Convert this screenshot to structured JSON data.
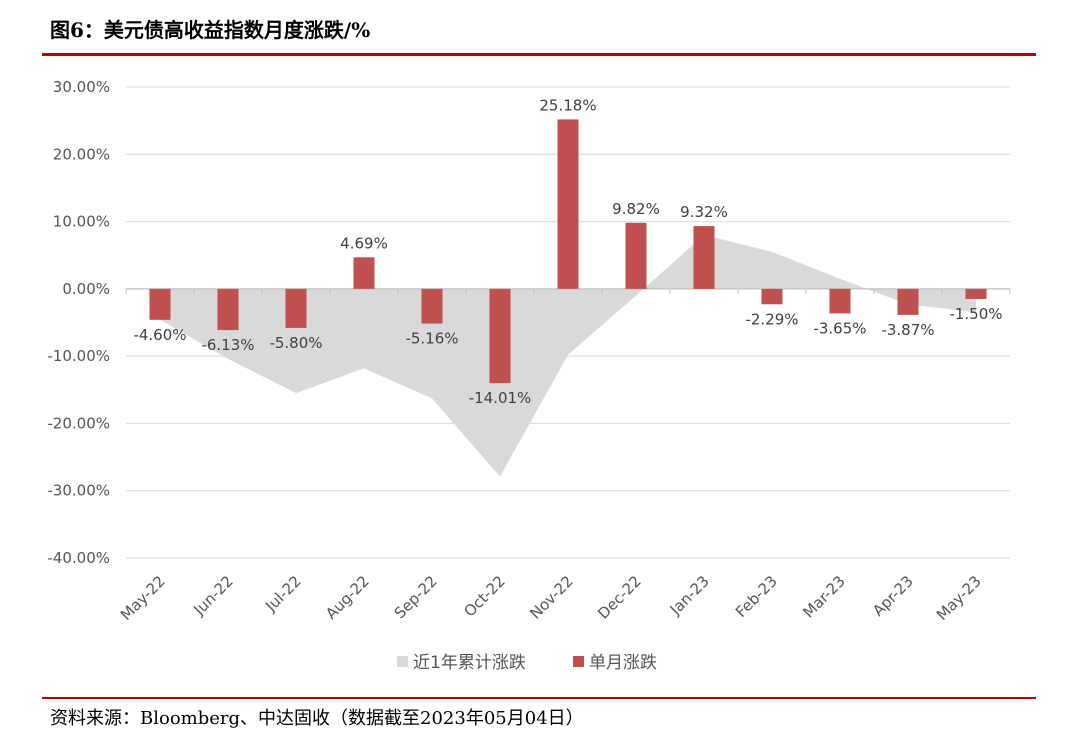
{
  "title": "图6：美元债高收益指数月度涨跌/%",
  "source": "资料来源：Bloomberg、中达固收（数据截至2023年05月04日）",
  "colors": {
    "bar": "#c0504d",
    "area": "#d9d9d9",
    "rule": "#c00000",
    "grid": "#d9d9d9"
  },
  "chart_data": {
    "type": "bar",
    "title": "图6：美元债高收益指数月度涨跌/%",
    "categories": [
      "May-22",
      "Jun-22",
      "Jul-22",
      "Aug-22",
      "Sep-22",
      "Oct-22",
      "Nov-22",
      "Dec-22",
      "Jan-23",
      "Feb-23",
      "Mar-23",
      "Apr-23",
      "May-23"
    ],
    "ylim": [
      -40,
      30
    ],
    "yticks": [
      30,
      20,
      10,
      0,
      -10,
      -20,
      -30,
      -40
    ],
    "ytick_labels": [
      "30.00%",
      "20.00%",
      "10.00%",
      "0.00%",
      "-10.00%",
      "-20.00%",
      "-30.00%",
      "-40.00%"
    ],
    "series": [
      {
        "name": "近1年累计涨跌",
        "type": "area",
        "values": [
          -4.6,
          -10.4,
          -15.5,
          -11.8,
          -16.3,
          -27.9,
          -9.8,
          -1.0,
          8.0,
          5.5,
          1.5,
          -2.3,
          -3.5
        ]
      },
      {
        "name": "单月涨跌",
        "type": "bar",
        "values": [
          -4.6,
          -6.13,
          -5.8,
          4.69,
          -5.16,
          -14.01,
          25.18,
          9.82,
          9.32,
          -2.29,
          -3.65,
          -3.87,
          -1.5
        ],
        "labels": [
          "-4.60%",
          "-6.13%",
          "-5.80%",
          "4.69%",
          "-5.16%",
          "-14.01%",
          "25.18%",
          "9.82%",
          "9.32%",
          "-2.29%",
          "-3.65%",
          "-3.87%",
          "-1.50%"
        ]
      }
    ],
    "legend": {
      "position": "bottom",
      "items": [
        "近1年累计涨跌",
        "单月涨跌"
      ]
    }
  }
}
